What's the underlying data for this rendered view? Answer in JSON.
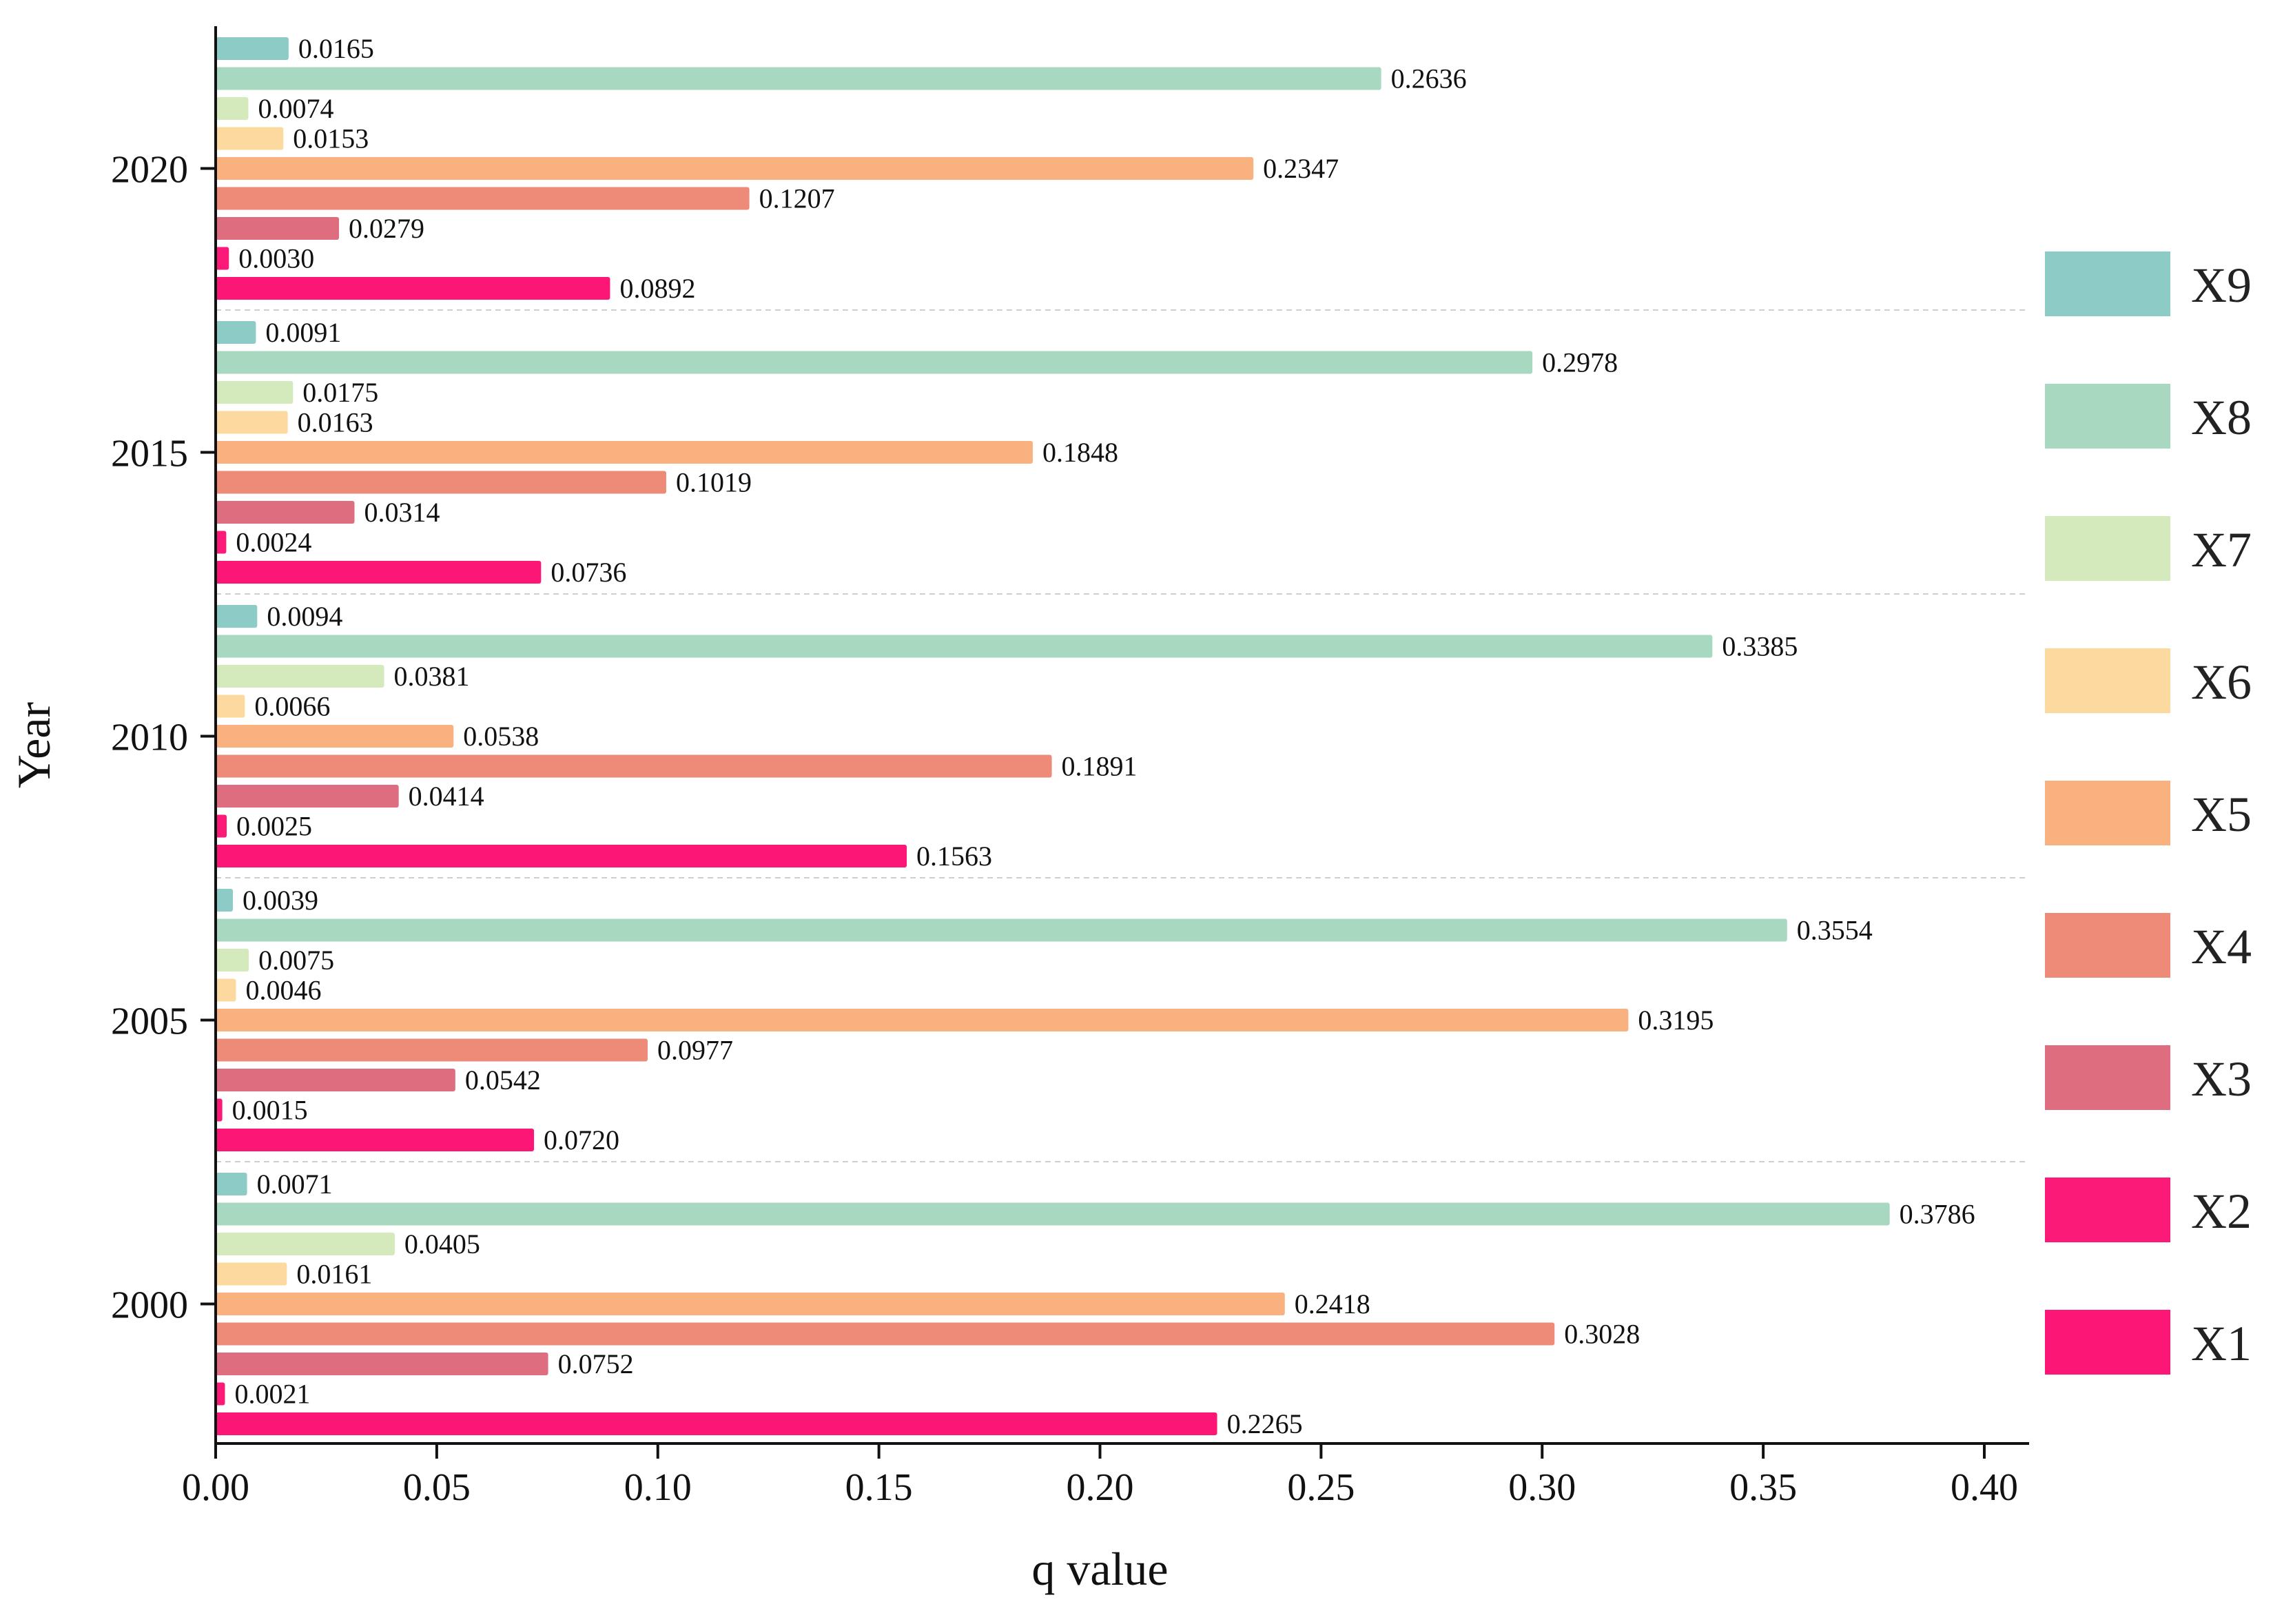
{
  "chart_data": {
    "type": "bar",
    "orientation": "horizontal",
    "title": "",
    "xlabel": "q value",
    "ylabel": "Year",
    "xlim": [
      0,
      0.41
    ],
    "xticks": [
      "0.00",
      "0.05",
      "0.10",
      "0.15",
      "0.20",
      "0.25",
      "0.30",
      "0.35",
      "0.40"
    ],
    "xtick_values": [
      0,
      0.05,
      0.1,
      0.15,
      0.2,
      0.25,
      0.3,
      0.35,
      0.4
    ],
    "categories": [
      "2020",
      "2015",
      "2010",
      "2005",
      "2000"
    ],
    "legend_position": "right",
    "grid": false,
    "series": [
      {
        "name": "X9",
        "color": "#8ccbc6",
        "values": [
          0.0165,
          0.0091,
          0.0094,
          0.0039,
          0.0071
        ],
        "labels": [
          "0.0165",
          "0.0091",
          "0.0094",
          "0.0039",
          "0.0071"
        ]
      },
      {
        "name": "X8",
        "color": "#a8d8c0",
        "values": [
          0.2636,
          0.2978,
          0.3385,
          0.3554,
          0.3786
        ],
        "labels": [
          "0.2636",
          "0.2978",
          "0.3385",
          "0.3554",
          "0.3786"
        ]
      },
      {
        "name": "X7",
        "color": "#d4eabd",
        "values": [
          0.0074,
          0.0175,
          0.0381,
          0.0075,
          0.0405
        ],
        "labels": [
          "0.0074",
          "0.0175",
          "0.0381",
          "0.0075",
          "0.0405"
        ]
      },
      {
        "name": "X6",
        "color": "#fcd99e",
        "values": [
          0.0153,
          0.0163,
          0.0066,
          0.0046,
          0.0161
        ],
        "labels": [
          "0.0153",
          "0.0163",
          "0.0066",
          "0.0046",
          "0.0161"
        ]
      },
      {
        "name": "X5",
        "color": "#f9b17f",
        "values": [
          0.2347,
          0.1848,
          0.0538,
          0.3195,
          0.2418
        ],
        "labels": [
          "0.2347",
          "0.1848",
          "0.0538",
          "0.3195",
          "0.2418"
        ]
      },
      {
        "name": "X4",
        "color": "#ee8a78",
        "values": [
          0.1207,
          0.1019,
          0.1891,
          0.0977,
          0.3028
        ],
        "labels": [
          "0.1207",
          "0.1019",
          "0.1891",
          "0.0977",
          "0.3028"
        ]
      },
      {
        "name": "X3",
        "color": "#df6d80",
        "values": [
          0.0279,
          0.0314,
          0.0414,
          0.0542,
          0.0752
        ],
        "labels": [
          "0.0279",
          "0.0314",
          "0.0414",
          "0.0542",
          "0.0752"
        ]
      },
      {
        "name": "X2",
        "color": "#fb1a78",
        "values": [
          0.003,
          0.0024,
          0.0025,
          0.0015,
          0.0021
        ],
        "labels": [
          "0.0030",
          "0.0024",
          "0.0025",
          "0.0015",
          "0.0021"
        ]
      },
      {
        "name": "X1",
        "color": "#fc1776",
        "values": [
          0.0892,
          0.0736,
          0.1563,
          0.072,
          0.2265
        ],
        "labels": [
          "0.0892",
          "0.0736",
          "0.1563",
          "0.0720",
          "0.2265"
        ]
      }
    ]
  }
}
